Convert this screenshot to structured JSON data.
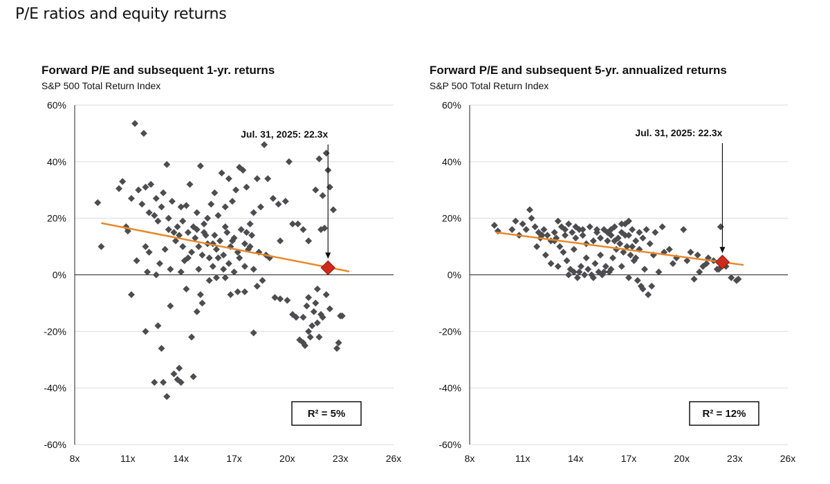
{
  "page": {
    "title": "P/E ratios and equity returns"
  },
  "colors": {
    "point": "#4d4d4f",
    "trend": "#e8882a",
    "marker": "#d02a1c",
    "grid": "#dadada",
    "axis": "#222222"
  },
  "chart_data": [
    {
      "type": "scatter",
      "title": "Forward P/E and subsequent 1-yr. returns",
      "subtitle": "S&P 500 Total Return Index",
      "xlim": [
        8,
        26
      ],
      "ylim": [
        -0.6,
        0.6
      ],
      "x_ticks": [
        8,
        11,
        14,
        17,
        20,
        23,
        26
      ],
      "x_tick_labels": [
        "8x",
        "11x",
        "14x",
        "17x",
        "20x",
        "23x",
        "26x"
      ],
      "y_ticks": [
        -0.6,
        -0.4,
        -0.2,
        0,
        0.2,
        0.4,
        0.6
      ],
      "y_tick_labels": [
        "-60%",
        "-40%",
        "-20%",
        "0%",
        "20%",
        "40%",
        "60%"
      ],
      "trendline": {
        "x": [
          9.5,
          23.5
        ],
        "y": [
          0.183,
          0.012
        ]
      },
      "current": {
        "x": 22.3,
        "y": 0.025,
        "label": "Jul. 31, 2025: 22.3x",
        "label_x": 20.6,
        "label_y": 0.485
      },
      "r2_label": "R² = 5%",
      "points": [
        [
          9.3,
          0.255
        ],
        [
          9.5,
          0.1
        ],
        [
          10.5,
          0.305
        ],
        [
          10.7,
          0.33
        ],
        [
          10.9,
          0.17
        ],
        [
          11.0,
          0.155
        ],
        [
          11.2,
          0.27
        ],
        [
          11.4,
          0.535
        ],
        [
          11.6,
          0.3
        ],
        [
          11.8,
          0.25
        ],
        [
          11.9,
          0.5
        ],
        [
          12.0,
          0.31
        ],
        [
          12.2,
          0.22
        ],
        [
          12.3,
          0.32
        ],
        [
          12.5,
          0.21
        ],
        [
          12.6,
          0.27
        ],
        [
          12.7,
          0.19
        ],
        [
          12.9,
          0.24
        ],
        [
          13.0,
          0.29
        ],
        [
          13.2,
          0.39
        ],
        [
          13.3,
          0.2
        ],
        [
          13.5,
          0.26
        ],
        [
          13.6,
          0.15
        ],
        [
          13.8,
          0.17
        ],
        [
          14.0,
          0.24
        ],
        [
          14.1,
          0.19
        ],
        [
          14.3,
          0.245
        ],
        [
          14.5,
          0.32
        ],
        [
          14.7,
          0.17
        ],
        [
          14.9,
          0.22
        ],
        [
          15.1,
          0.385
        ],
        [
          15.3,
          0.18
        ],
        [
          15.5,
          0.2
        ],
        [
          15.7,
          0.25
        ],
        [
          15.9,
          0.29
        ],
        [
          16.1,
          0.21
        ],
        [
          16.3,
          0.36
        ],
        [
          16.5,
          0.24
        ],
        [
          16.7,
          0.34
        ],
        [
          16.9,
          0.26
        ],
        [
          17.1,
          0.3
        ],
        [
          17.3,
          0.38
        ],
        [
          17.5,
          0.37
        ],
        [
          17.7,
          0.31
        ],
        [
          17.9,
          0.18
        ],
        [
          18.1,
          0.22
        ],
        [
          18.3,
          0.34
        ],
        [
          18.5,
          0.24
        ],
        [
          18.7,
          0.46
        ],
        [
          18.9,
          0.34
        ],
        [
          19.2,
          0.27
        ],
        [
          19.5,
          0.25
        ],
        [
          19.9,
          0.26
        ],
        [
          20.1,
          0.4
        ],
        [
          20.6,
          0.18
        ],
        [
          20.9,
          0.16
        ],
        [
          21.2,
          0.12
        ],
        [
          21.6,
          0.3
        ],
        [
          21.8,
          0.41
        ],
        [
          22.0,
          0.28
        ],
        [
          22.2,
          0.43
        ],
        [
          22.3,
          0.37
        ],
        [
          22.4,
          0.31
        ],
        [
          22.6,
          0.23
        ],
        [
          21.9,
          0.16
        ],
        [
          22.1,
          0.165
        ],
        [
          11.5,
          0.05
        ],
        [
          12.0,
          0.1
        ],
        [
          12.2,
          0.08
        ],
        [
          12.8,
          0.04
        ],
        [
          13.1,
          0.09
        ],
        [
          13.7,
          0.12
        ],
        [
          14.2,
          0.05
        ],
        [
          14.4,
          0.15
        ],
        [
          14.6,
          0.08
        ],
        [
          14.8,
          0.13
        ],
        [
          15.0,
          0.1
        ],
        [
          15.2,
          0.07
        ],
        [
          15.4,
          0.14
        ],
        [
          15.6,
          0.06
        ],
        [
          15.8,
          0.11
        ],
        [
          16.0,
          0.09
        ],
        [
          16.2,
          0.12
        ],
        [
          16.4,
          0.07
        ],
        [
          16.6,
          0.15
        ],
        [
          16.8,
          0.1
        ],
        [
          17.0,
          0.13
        ],
        [
          17.2,
          0.08
        ],
        [
          17.4,
          0.16
        ],
        [
          17.6,
          0.11
        ],
        [
          17.8,
          0.09
        ],
        [
          18.0,
          0.14
        ],
        [
          18.4,
          0.08
        ],
        [
          18.8,
          0.07
        ],
        [
          19.6,
          0.12
        ],
        [
          20.3,
          0.18
        ],
        [
          13.3,
          0.16
        ],
        [
          13.9,
          0.14
        ],
        [
          14.9,
          0.16
        ],
        [
          15.5,
          0.11
        ],
        [
          16.5,
          0.17
        ],
        [
          17.3,
          0.06
        ],
        [
          12.1,
          0.01
        ],
        [
          12.6,
          0.0
        ],
        [
          13.4,
          0.02
        ],
        [
          14.0,
          0.01
        ],
        [
          15.0,
          0.02
        ],
        [
          15.8,
          0.03
        ],
        [
          16.4,
          0.02
        ],
        [
          17.0,
          0.01
        ],
        [
          17.6,
          0.03
        ],
        [
          18.1,
          0.02
        ],
        [
          11.2,
          -0.07
        ],
        [
          12.0,
          -0.2
        ],
        [
          12.7,
          -0.18
        ],
        [
          12.5,
          -0.38
        ],
        [
          12.9,
          -0.26
        ],
        [
          13.0,
          -0.38
        ],
        [
          13.2,
          -0.43
        ],
        [
          13.4,
          -0.11
        ],
        [
          13.6,
          -0.35
        ],
        [
          13.8,
          -0.37
        ],
        [
          13.9,
          -0.33
        ],
        [
          14.0,
          -0.38
        ],
        [
          14.3,
          -0.05
        ],
        [
          14.6,
          -0.22
        ],
        [
          14.7,
          -0.36
        ],
        [
          14.9,
          -0.13
        ],
        [
          15.1,
          -0.07
        ],
        [
          15.2,
          -0.1
        ],
        [
          15.6,
          -0.02
        ],
        [
          16.0,
          -0.01
        ],
        [
          16.5,
          -0.01
        ],
        [
          16.8,
          -0.07
        ],
        [
          17.2,
          -0.06
        ],
        [
          17.6,
          -0.06
        ],
        [
          18.1,
          -0.205
        ],
        [
          18.3,
          -0.04
        ],
        [
          18.6,
          -0.02
        ],
        [
          19.3,
          -0.08
        ],
        [
          19.6,
          -0.085
        ],
        [
          20.0,
          -0.09
        ],
        [
          20.3,
          -0.14
        ],
        [
          20.5,
          -0.15
        ],
        [
          20.7,
          -0.23
        ],
        [
          20.9,
          -0.24
        ],
        [
          21.0,
          -0.25
        ],
        [
          21.1,
          -0.11
        ],
        [
          21.2,
          -0.2
        ],
        [
          21.3,
          -0.22
        ],
        [
          21.4,
          -0.18
        ],
        [
          21.5,
          -0.13
        ],
        [
          21.6,
          -0.1
        ],
        [
          21.7,
          -0.17
        ],
        [
          21.8,
          -0.22
        ],
        [
          21.9,
          -0.14
        ],
        [
          22.0,
          -0.15
        ],
        [
          22.2,
          -0.07
        ],
        [
          22.4,
          -0.12
        ],
        [
          22.8,
          -0.26
        ],
        [
          22.9,
          -0.24
        ],
        [
          23.0,
          -0.145
        ],
        [
          23.1,
          -0.145
        ],
        [
          20.9,
          -0.15
        ],
        [
          21.2,
          -0.08
        ],
        [
          21.7,
          -0.05
        ],
        [
          14.1,
          0.1
        ],
        [
          14.4,
          0.06
        ],
        [
          16.7,
          0.04
        ],
        [
          17.9,
          0.1
        ],
        [
          19.0,
          0.06
        ],
        [
          15.3,
          0.15
        ],
        [
          15.9,
          0.14
        ],
        [
          16.1,
          0.06
        ],
        [
          16.9,
          0.12
        ],
        [
          17.7,
          0.15
        ]
      ]
    },
    {
      "type": "scatter",
      "title": "Forward P/E and subsequent 5-yr. annualized returns",
      "subtitle": "S&P 500 Total Return Index",
      "xlim": [
        8,
        26
      ],
      "ylim": [
        -0.6,
        0.6
      ],
      "x_ticks": [
        8,
        11,
        14,
        17,
        20,
        23,
        26
      ],
      "x_tick_labels": [
        "8x",
        "11x",
        "14x",
        "17x",
        "20x",
        "23x",
        "26x"
      ],
      "y_ticks": [
        -0.6,
        -0.4,
        -0.2,
        0,
        0.2,
        0.4,
        0.6
      ],
      "y_tick_labels": [
        "-60%",
        "-40%",
        "-20%",
        "0%",
        "20%",
        "40%",
        "60%"
      ],
      "trendline": {
        "x": [
          9.5,
          23.5
        ],
        "y": [
          0.15,
          0.035
        ]
      },
      "current": {
        "x": 22.3,
        "y": 0.045,
        "label": "Jul. 31, 2025: 22.3x",
        "label_x": 20.6,
        "label_y": 0.49
      },
      "r2_label": "R² = 12%",
      "points": [
        [
          9.4,
          0.175
        ],
        [
          9.6,
          0.155
        ],
        [
          10.4,
          0.16
        ],
        [
          10.6,
          0.19
        ],
        [
          10.8,
          0.14
        ],
        [
          11.0,
          0.18
        ],
        [
          11.2,
          0.16
        ],
        [
          11.4,
          0.23
        ],
        [
          11.5,
          0.2
        ],
        [
          11.7,
          0.17
        ],
        [
          11.9,
          0.15
        ],
        [
          12.0,
          0.13
        ],
        [
          12.2,
          0.16
        ],
        [
          12.4,
          0.14
        ],
        [
          12.6,
          0.12
        ],
        [
          12.8,
          0.15
        ],
        [
          13.0,
          0.19
        ],
        [
          13.2,
          0.17
        ],
        [
          13.4,
          0.14
        ],
        [
          13.6,
          0.18
        ],
        [
          13.8,
          0.15
        ],
        [
          14.0,
          0.13
        ],
        [
          14.2,
          0.16
        ],
        [
          14.4,
          0.14
        ],
        [
          14.6,
          0.11
        ],
        [
          14.8,
          0.17
        ],
        [
          15.0,
          0.12
        ],
        [
          15.2,
          0.15
        ],
        [
          15.4,
          0.13
        ],
        [
          15.6,
          0.16
        ],
        [
          15.8,
          0.12
        ],
        [
          16.0,
          0.14
        ],
        [
          16.2,
          0.17
        ],
        [
          16.4,
          0.13
        ],
        [
          16.6,
          0.15
        ],
        [
          16.8,
          0.18
        ],
        [
          17.0,
          0.14
        ],
        [
          17.2,
          0.16
        ],
        [
          17.4,
          0.12
        ],
        [
          17.6,
          0.15
        ],
        [
          17.8,
          0.13
        ],
        [
          18.0,
          0.16
        ],
        [
          18.2,
          0.11
        ],
        [
          18.5,
          0.15
        ],
        [
          18.9,
          0.17
        ],
        [
          19.3,
          0.09
        ],
        [
          19.7,
          0.06
        ],
        [
          20.1,
          0.16
        ],
        [
          20.5,
          0.08
        ],
        [
          20.9,
          0.07
        ],
        [
          21.2,
          0.03
        ],
        [
          21.5,
          0.06
        ],
        [
          21.8,
          0.05
        ],
        [
          22.0,
          0.02
        ],
        [
          22.2,
          0.17
        ],
        [
          22.5,
          0.03
        ],
        [
          22.8,
          -0.01
        ],
        [
          23.1,
          -0.02
        ],
        [
          23.2,
          -0.015
        ],
        [
          11.8,
          0.1
        ],
        [
          12.3,
          0.07
        ],
        [
          12.6,
          0.04
        ],
        [
          13.1,
          0.1
        ],
        [
          13.3,
          0.08
        ],
        [
          13.5,
          0.05
        ],
        [
          13.7,
          0.02
        ],
        [
          13.9,
          0.01
        ],
        [
          14.1,
          -0.01
        ],
        [
          14.3,
          0.03
        ],
        [
          14.5,
          0.0
        ],
        [
          14.7,
          0.02
        ],
        [
          14.9,
          0.0
        ],
        [
          15.1,
          0.04
        ],
        [
          15.3,
          0.01
        ],
        [
          15.5,
          0.0
        ],
        [
          15.7,
          0.03
        ],
        [
          15.9,
          0.01
        ],
        [
          16.1,
          0.06
        ],
        [
          16.3,
          0.09
        ],
        [
          16.5,
          0.11
        ],
        [
          16.7,
          0.08
        ],
        [
          16.9,
          0.1
        ],
        [
          17.1,
          0.07
        ],
        [
          17.3,
          0.05
        ],
        [
          17.5,
          -0.02
        ],
        [
          17.7,
          -0.04
        ],
        [
          17.9,
          0.02
        ],
        [
          18.1,
          -0.07
        ],
        [
          18.3,
          -0.04
        ],
        [
          18.7,
          0.01
        ],
        [
          13.0,
          0.03
        ],
        [
          13.6,
          0.0
        ],
        [
          14.2,
          0.01
        ],
        [
          15.0,
          -0.01
        ],
        [
          15.6,
          0.01
        ],
        [
          16.0,
          0.02
        ],
        [
          16.6,
          0.03
        ],
        [
          17.0,
          -0.01
        ],
        [
          17.4,
          0.06
        ],
        [
          17.8,
          -0.05
        ],
        [
          19.0,
          0.08
        ],
        [
          19.5,
          0.04
        ],
        [
          20.3,
          0.05
        ],
        [
          20.7,
          -0.015
        ],
        [
          21.0,
          0.01
        ],
        [
          21.4,
          0.04
        ],
        [
          22.1,
          0.02
        ],
        [
          12.8,
          0.12
        ],
        [
          13.9,
          0.09
        ],
        [
          14.6,
          0.06
        ],
        [
          15.4,
          0.07
        ],
        [
          16.2,
          0.12
        ],
        [
          16.8,
          0.14
        ],
        [
          17.2,
          0.1
        ],
        [
          17.6,
          0.09
        ],
        [
          18.4,
          0.07
        ],
        [
          14.0,
          0.17
        ],
        [
          14.4,
          0.16
        ],
        [
          15.2,
          0.16
        ],
        [
          16.0,
          0.16
        ],
        [
          16.6,
          0.18
        ],
        [
          17.0,
          0.19
        ],
        [
          12.1,
          0.14
        ],
        [
          12.9,
          0.13
        ],
        [
          13.4,
          0.16
        ],
        [
          15.8,
          0.15
        ]
      ]
    }
  ]
}
